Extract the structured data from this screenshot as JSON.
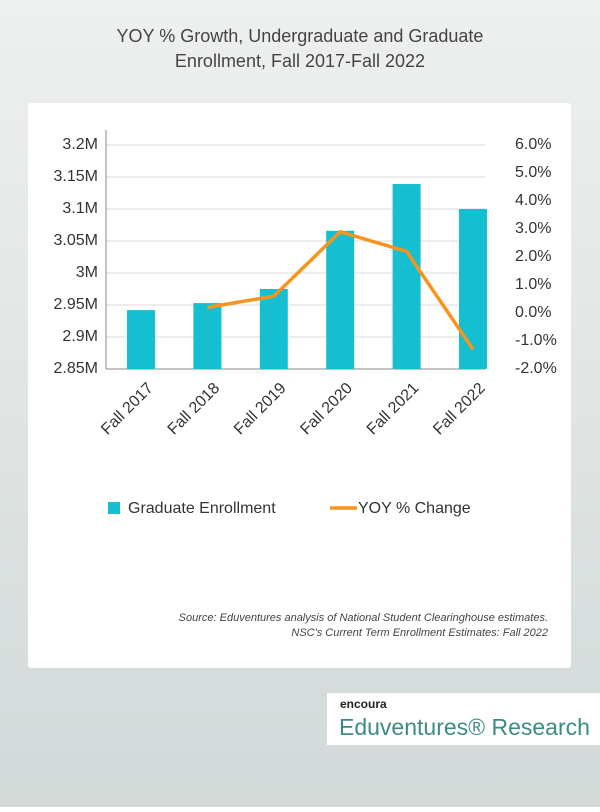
{
  "chart_data": {
    "type": "combo",
    "title": [
      "YOY % Growth, Undergraduate and Graduate",
      "Enrollment, Fall 2017-Fall 2022"
    ],
    "categories": [
      "Fall 2017",
      "Fall 2018",
      "Fall 2019",
      "Fall 2020",
      "Fall 2021",
      "Fall 2022"
    ],
    "series": [
      {
        "name": "Graduate Enrollment",
        "type": "bar",
        "axis": "y",
        "color": "#15bfd2",
        "values": [
          2942000,
          2953000,
          2975000,
          3066000,
          3139000,
          3100000
        ]
      },
      {
        "name": "YOY % Change",
        "type": "line",
        "axis": "y2",
        "color": "#f7941d",
        "values": [
          null,
          0.2,
          0.6,
          2.9,
          2.2,
          -1.3
        ]
      }
    ],
    "ylim": [
      2850000,
      3200000
    ],
    "yticks": [
      {
        "value": 2850000,
        "label": "2.85M"
      },
      {
        "value": 2900000,
        "label": "2.9M"
      },
      {
        "value": 2950000,
        "label": "2.95M"
      },
      {
        "value": 3000000,
        "label": "3M"
      },
      {
        "value": 3050000,
        "label": "3.05M"
      },
      {
        "value": 3100000,
        "label": "3.1M"
      },
      {
        "value": 3150000,
        "label": "3.15M"
      },
      {
        "value": 3200000,
        "label": "3.2M"
      }
    ],
    "y2lim": [
      -2,
      6
    ],
    "y2ticks": [
      {
        "value": -2,
        "label": "-2.0%"
      },
      {
        "value": -1,
        "label": "-1.0%"
      },
      {
        "value": 0,
        "label": "0.0%"
      },
      {
        "value": 1,
        "label": "1.0%"
      },
      {
        "value": 2,
        "label": "2.0%"
      },
      {
        "value": 3,
        "label": "3.0%"
      },
      {
        "value": 4,
        "label": "4.0%"
      },
      {
        "value": 5,
        "label": "5.0%"
      },
      {
        "value": 6,
        "label": "6.0%"
      }
    ],
    "legend": "bottom",
    "source": [
      "Source: Eduventures analysis of National Student Clearinghouse estimates.",
      "NSC's Current Term Enrollment Estimates: Fall 2022"
    ]
  },
  "logo": {
    "brand": "encoura",
    "name": "Eduventures® Research"
  }
}
